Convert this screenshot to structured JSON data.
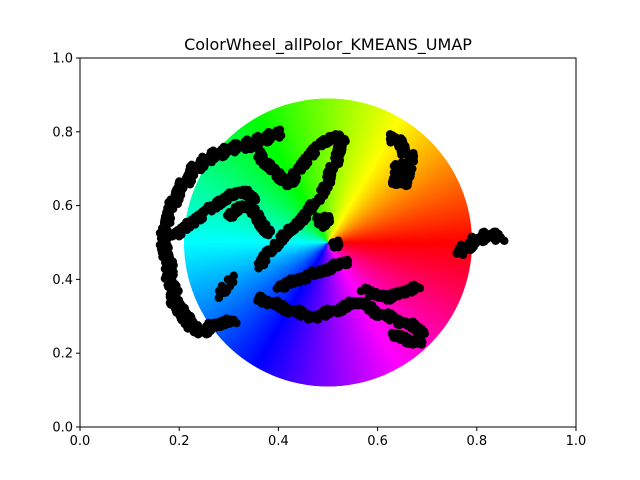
{
  "chart_data": {
    "type": "scatter",
    "title": "ColorWheel_allPolor_KMEANS_UMAP",
    "xlabel": "",
    "ylabel": "",
    "xlim": [
      0.0,
      1.0
    ],
    "ylim": [
      0.0,
      1.0
    ],
    "x_ticks": [
      "0.0",
      "0.2",
      "0.4",
      "0.6",
      "0.8",
      "1.0"
    ],
    "y_ticks": [
      "0.0",
      "0.2",
      "0.4",
      "0.6",
      "0.8",
      "1.0"
    ],
    "grid": false,
    "legend": "none",
    "background": {
      "kind": "hsv-color-wheel",
      "center": [
        0.5,
        0.5
      ],
      "radius": 0.39,
      "hue_reference": "red at angle 0, counterclockwise through yellow, green, cyan, blue, magenta"
    },
    "marker_color": "#000000",
    "clusters": [
      {
        "x": [
          0.17,
          0.18,
          0.19,
          0.2,
          0.21,
          0.22,
          0.23,
          0.24,
          0.25,
          0.26,
          0.27,
          0.28,
          0.29,
          0.3,
          0.31,
          0.32,
          0.33,
          0.34,
          0.35,
          0.36,
          0.37,
          0.38,
          0.39,
          0.4
        ],
        "y": [
          0.55,
          0.58,
          0.62,
          0.65,
          0.66,
          0.68,
          0.7,
          0.71,
          0.72,
          0.73,
          0.74,
          0.74,
          0.75,
          0.75,
          0.76,
          0.76,
          0.76,
          0.77,
          0.77,
          0.78,
          0.78,
          0.79,
          0.79,
          0.8
        ]
      },
      {
        "x": [
          0.17,
          0.17,
          0.17,
          0.18,
          0.18,
          0.18,
          0.19,
          0.19,
          0.19,
          0.2,
          0.2,
          0.21,
          0.21,
          0.22,
          0.22,
          0.23,
          0.24,
          0.25,
          0.26,
          0.27,
          0.29,
          0.31
        ],
        "y": [
          0.54,
          0.51,
          0.48,
          0.45,
          0.42,
          0.4,
          0.38,
          0.36,
          0.34,
          0.33,
          0.32,
          0.31,
          0.3,
          0.29,
          0.28,
          0.27,
          0.26,
          0.26,
          0.27,
          0.28,
          0.28,
          0.29
        ]
      },
      {
        "x": [
          0.19,
          0.21,
          0.23,
          0.25,
          0.27,
          0.29,
          0.31,
          0.33,
          0.34,
          0.35
        ],
        "y": [
          0.52,
          0.54,
          0.56,
          0.58,
          0.6,
          0.62,
          0.63,
          0.64,
          0.63,
          0.62
        ]
      },
      {
        "x": [
          0.35,
          0.37,
          0.39,
          0.4,
          0.41,
          0.42,
          0.43,
          0.44,
          0.46,
          0.48,
          0.5,
          0.52,
          0.53
        ],
        "y": [
          0.76,
          0.72,
          0.7,
          0.68,
          0.67,
          0.66,
          0.67,
          0.7,
          0.73,
          0.76,
          0.78,
          0.79,
          0.77
        ]
      },
      {
        "x": [
          0.36,
          0.38,
          0.4,
          0.42,
          0.44,
          0.46,
          0.48,
          0.5,
          0.51,
          0.52,
          0.53
        ],
        "y": [
          0.43,
          0.47,
          0.5,
          0.53,
          0.55,
          0.58,
          0.62,
          0.66,
          0.7,
          0.74,
          0.77
        ]
      },
      {
        "x": [
          0.3,
          0.32,
          0.34,
          0.35,
          0.36,
          0.37,
          0.38
        ],
        "y": [
          0.57,
          0.59,
          0.6,
          0.58,
          0.56,
          0.54,
          0.52
        ]
      },
      {
        "x": [
          0.48,
          0.49,
          0.5,
          0.49
        ],
        "y": [
          0.55,
          0.57,
          0.56,
          0.54
        ]
      },
      {
        "x": [
          0.51,
          0.52
        ],
        "y": [
          0.5,
          0.49
        ]
      },
      {
        "x": [
          0.63,
          0.64,
          0.65,
          0.66,
          0.67,
          0.64,
          0.65,
          0.66,
          0.63,
          0.64,
          0.65,
          0.66,
          0.67
        ],
        "y": [
          0.79,
          0.77,
          0.76,
          0.74,
          0.72,
          0.7,
          0.69,
          0.68,
          0.66,
          0.67,
          0.66,
          0.68,
          0.7
        ]
      },
      {
        "x": [
          0.76,
          0.77,
          0.78,
          0.79,
          0.8,
          0.81,
          0.82,
          0.83,
          0.84,
          0.85
        ],
        "y": [
          0.47,
          0.48,
          0.49,
          0.5,
          0.51,
          0.51,
          0.52,
          0.52,
          0.52,
          0.51
        ]
      },
      {
        "x": [
          0.36,
          0.38,
          0.4,
          0.42,
          0.44,
          0.46,
          0.48,
          0.5,
          0.52,
          0.54,
          0.56,
          0.58,
          0.6,
          0.62,
          0.64,
          0.66,
          0.68,
          0.69
        ],
        "y": [
          0.35,
          0.34,
          0.33,
          0.32,
          0.31,
          0.3,
          0.3,
          0.31,
          0.32,
          0.33,
          0.34,
          0.33,
          0.31,
          0.3,
          0.29,
          0.28,
          0.27,
          0.26
        ]
      },
      {
        "x": [
          0.4,
          0.42,
          0.44,
          0.46,
          0.48,
          0.5,
          0.52,
          0.54
        ],
        "y": [
          0.38,
          0.39,
          0.4,
          0.41,
          0.42,
          0.43,
          0.44,
          0.45
        ]
      },
      {
        "x": [
          0.57,
          0.6,
          0.62,
          0.64,
          0.66,
          0.68
        ],
        "y": [
          0.37,
          0.36,
          0.35,
          0.36,
          0.37,
          0.38
        ]
      },
      {
        "x": [
          0.63,
          0.65,
          0.67,
          0.69
        ],
        "y": [
          0.25,
          0.24,
          0.23,
          0.23
        ]
      },
      {
        "x": [
          0.31,
          0.28
        ],
        "y": [
          0.41,
          0.35
        ]
      }
    ]
  }
}
